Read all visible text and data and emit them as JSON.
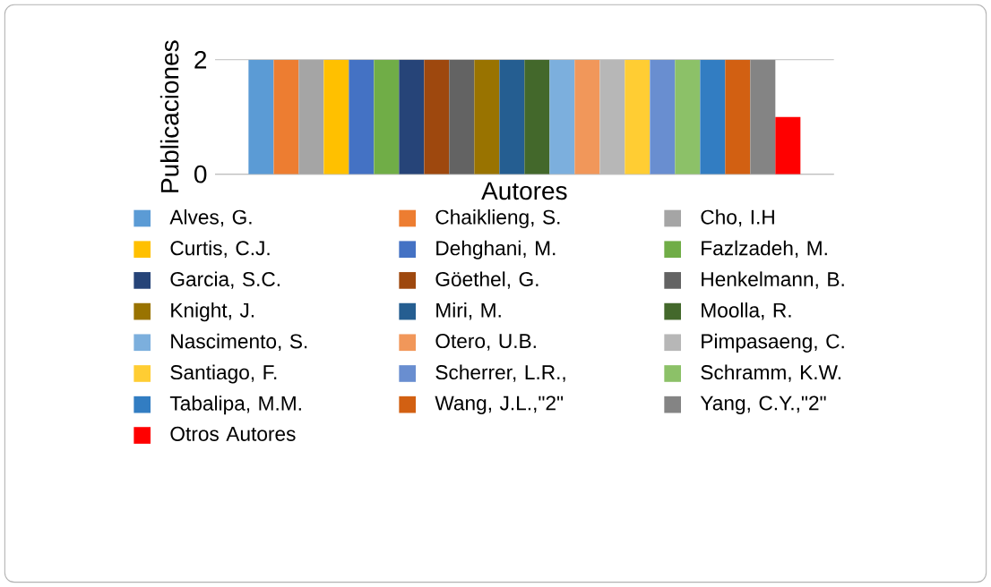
{
  "chart_data": {
    "type": "bar",
    "xlabel": "Autores",
    "ylabel": "Publicaciones",
    "categories": [
      null
    ],
    "ylim": [
      0,
      2
    ],
    "yticks": [
      0,
      2
    ],
    "grid": "y",
    "legend": "bottom",
    "series": [
      {
        "name": "Alves, G.",
        "color": "#5b9bd5",
        "values": [
          2
        ]
      },
      {
        "name": "Chaiklieng, S.",
        "color": "#ed7d31",
        "values": [
          2
        ]
      },
      {
        "name": "Cho, I.H",
        "color": "#a5a5a5",
        "values": [
          2
        ]
      },
      {
        "name": "Curtis, C.J.",
        "color": "#ffc000",
        "values": [
          2
        ]
      },
      {
        "name": "Dehghani, M.",
        "color": "#4472c4",
        "values": [
          2
        ]
      },
      {
        "name": "Fazlzadeh, M.",
        "color": "#70ad47",
        "values": [
          2
        ]
      },
      {
        "name": "Garcia, S.C.",
        "color": "#264478",
        "values": [
          2
        ]
      },
      {
        "name": "Göethel, G.",
        "color": "#9e480e",
        "values": [
          2
        ]
      },
      {
        "name": "Henkelmann, B.",
        "color": "#636363",
        "values": [
          2
        ]
      },
      {
        "name": "Knight, J.",
        "color": "#997300",
        "values": [
          2
        ]
      },
      {
        "name": "Miri, M.",
        "color": "#255e91",
        "values": [
          2
        ]
      },
      {
        "name": "Moolla, R.",
        "color": "#43682b",
        "values": [
          2
        ]
      },
      {
        "name": "Nascimento, S.",
        "color": "#7cafdd",
        "values": [
          2
        ]
      },
      {
        "name": "Otero, U.B.",
        "color": "#f1975a",
        "values": [
          2
        ]
      },
      {
        "name": "Pimpasaeng, C.",
        "color": "#b7b7b7",
        "values": [
          2
        ]
      },
      {
        "name": "Santiago, F.",
        "color": "#ffcd33",
        "values": [
          2
        ]
      },
      {
        "name": "Scherrer, L.R.,",
        "color": "#698ed0",
        "values": [
          2
        ]
      },
      {
        "name": "Schramm, K.W.",
        "color": "#8cc168",
        "values": [
          2
        ]
      },
      {
        "name": "Tabalipa, M.M.",
        "color": "#327dc2",
        "values": [
          2
        ]
      },
      {
        "name": "Wang, J.L.,\"2\"",
        "color": "#d26012",
        "values": [
          2
        ]
      },
      {
        "name": "Yang, C.Y.,\"2\"",
        "color": "#848484",
        "values": [
          2
        ]
      },
      {
        "name": "Otros Autores",
        "color": "#ff0000",
        "values": [
          1
        ]
      }
    ]
  }
}
